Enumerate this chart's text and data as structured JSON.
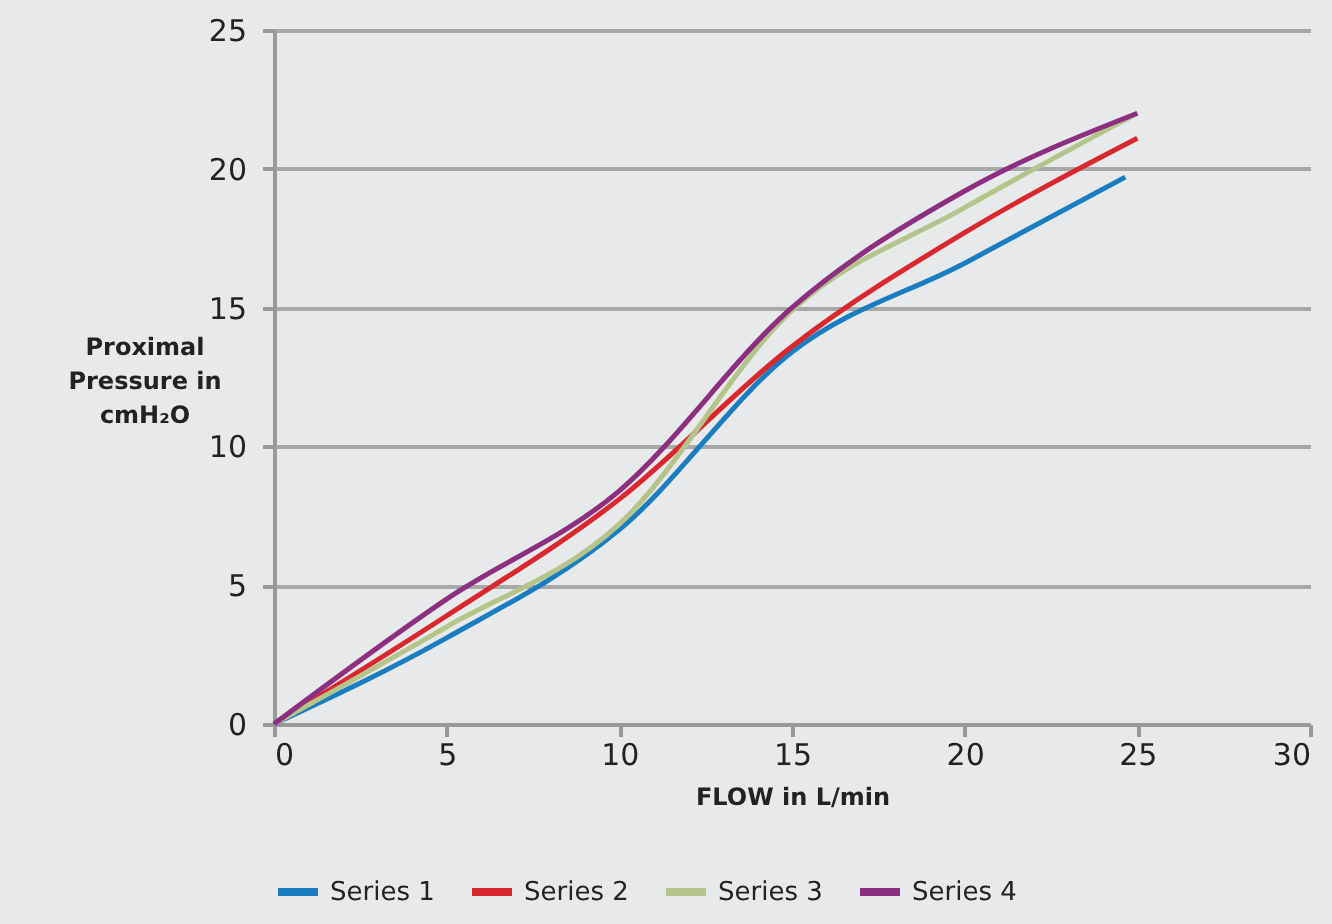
{
  "chart_data": {
    "type": "line",
    "xlabel": "FLOW in L/min",
    "ylabel": "Proximal Pressure in cmH₂O",
    "xlim": [
      0,
      30
    ],
    "xticks": [
      0,
      5,
      10,
      15,
      20,
      25,
      30
    ],
    "ylim": [
      0,
      25
    ],
    "yticks": [
      0,
      5,
      10,
      15,
      20,
      25
    ],
    "grid": "y",
    "legend": "bottom",
    "marker": "none",
    "line_style": "solid",
    "series": [
      {
        "name": "Series 1",
        "color": "#1a7dc0",
        "x": [
          0,
          5,
          10,
          15,
          20,
          24.65
        ],
        "values": [
          0,
          3.1,
          7.0,
          13.4,
          16.6,
          19.7
        ]
      },
      {
        "name": "Series 2",
        "color": "#d9272e",
        "x": [
          0,
          5,
          10,
          15,
          20,
          25
        ],
        "values": [
          0,
          3.9,
          8.1,
          13.6,
          17.7,
          21.1
        ]
      },
      {
        "name": "Series 3",
        "color": "#b5c48a",
        "x": [
          0,
          5,
          10,
          15,
          20,
          25
        ],
        "values": [
          0,
          3.5,
          7.2,
          14.9,
          18.6,
          22.0
        ]
      },
      {
        "name": "Series 4",
        "color": "#8b2f7e",
        "x": [
          0,
          5,
          10,
          15,
          20,
          25
        ],
        "values": [
          0,
          4.5,
          8.4,
          15.0,
          19.2,
          22.0
        ]
      }
    ]
  }
}
